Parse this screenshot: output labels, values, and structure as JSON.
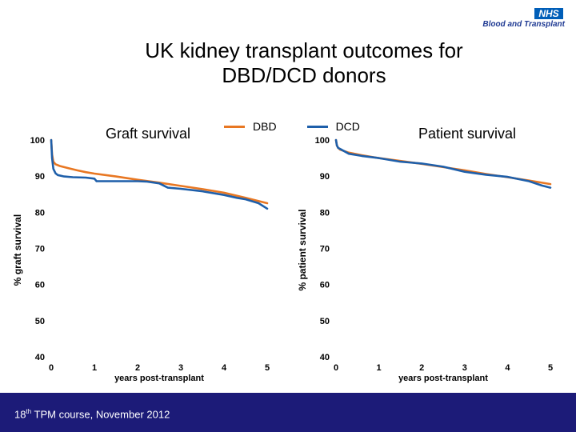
{
  "header": {
    "logo_mark": "NHS",
    "logo_text": "Blood and Transplant"
  },
  "title_line1": "UK kidney transplant outcomes for",
  "title_line2": "DBD/DCD donors",
  "legend": [
    {
      "label": "DBD",
      "color": "#E87722"
    },
    {
      "label": "DCD",
      "color": "#1E5FAA"
    }
  ],
  "footer": {
    "course_number": "18",
    "course_suffix": "th",
    "course_rest": " TPM course, November 2012"
  },
  "chart_data": [
    {
      "type": "line",
      "title": "Graft survival",
      "xlabel": "years post-transplant",
      "ylabel": "% graft survival",
      "xlim": [
        0,
        5
      ],
      "ylim": [
        40,
        100
      ],
      "xticks": [
        "0",
        "1",
        "2",
        "3",
        "4",
        "5"
      ],
      "yticks": [
        "40",
        "50",
        "60",
        "70",
        "80",
        "90",
        "100"
      ],
      "grid": false,
      "series": [
        {
          "name": "DBD",
          "color": "#E87722",
          "x": [
            0,
            0.02,
            0.05,
            0.1,
            0.2,
            0.4,
            0.6,
            0.8,
            1.0,
            1.5,
            2.0,
            2.5,
            3.0,
            3.5,
            4.0,
            4.5,
            5.0
          ],
          "y": [
            100,
            96,
            94,
            93.3,
            92.8,
            92.2,
            91.6,
            91.1,
            90.7,
            89.9,
            89.0,
            88.2,
            87.3,
            86.4,
            85.4,
            84.0,
            82.5
          ]
        },
        {
          "name": "DCD",
          "color": "#1E5FAA",
          "x": [
            0,
            0.02,
            0.05,
            0.1,
            0.15,
            0.3,
            0.5,
            0.8,
            1.0,
            1.05,
            1.5,
            2.0,
            2.2,
            2.5,
            2.7,
            3.0,
            3.5,
            4.0,
            4.3,
            4.5,
            4.8,
            5.0
          ],
          "y": [
            100,
            95,
            92,
            90.8,
            90.3,
            89.9,
            89.7,
            89.6,
            89.3,
            88.6,
            88.6,
            88.6,
            88.5,
            88.0,
            86.8,
            86.5,
            85.8,
            84.8,
            84.0,
            83.6,
            82.5,
            81.0
          ]
        }
      ]
    },
    {
      "type": "line",
      "title": "Patient survival",
      "xlabel": "years post-transplant",
      "ylabel": "% patient survival",
      "xlim": [
        0,
        5
      ],
      "ylim": [
        40,
        100
      ],
      "xticks": [
        "0",
        "1",
        "2",
        "3",
        "4",
        "5"
      ],
      "yticks": [
        "40",
        "50",
        "60",
        "70",
        "80",
        "90",
        "100"
      ],
      "grid": false,
      "series": [
        {
          "name": "DBD",
          "color": "#E87722",
          "x": [
            0,
            0.02,
            0.05,
            0.1,
            0.3,
            0.6,
            1.0,
            1.5,
            2.0,
            2.5,
            3.0,
            3.5,
            4.0,
            4.5,
            5.0
          ],
          "y": [
            100,
            98.5,
            97.8,
            97.3,
            96.5,
            95.8,
            95.0,
            94.2,
            93.4,
            92.5,
            91.6,
            90.6,
            89.7,
            88.8,
            87.8
          ]
        },
        {
          "name": "DCD",
          "color": "#1E5FAA",
          "x": [
            0,
            0.02,
            0.05,
            0.1,
            0.3,
            0.6,
            1.0,
            1.5,
            2.0,
            2.5,
            3.0,
            3.5,
            4.0,
            4.5,
            4.8,
            5.0
          ],
          "y": [
            100,
            98.5,
            97.8,
            97.5,
            96.2,
            95.6,
            95.0,
            94.0,
            93.5,
            92.6,
            91.2,
            90.4,
            89.8,
            88.6,
            87.4,
            86.8
          ]
        }
      ]
    }
  ]
}
